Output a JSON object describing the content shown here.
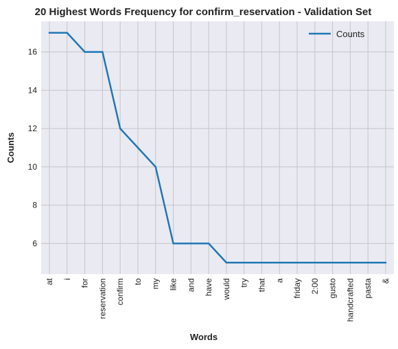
{
  "chart_data": {
    "type": "line",
    "title": "20 Highest Words Frequency for confirm_reservation - Validation Set",
    "xlabel": "Words",
    "ylabel": "Counts",
    "categories": [
      "at",
      "i",
      "for",
      "reservation",
      "confirm",
      "to",
      "my",
      "like",
      "and",
      "have",
      "would",
      "try",
      "that",
      "a",
      "friday",
      "2:00",
      "gusto",
      "handcrafted",
      "pasta",
      "&"
    ],
    "series": [
      {
        "name": "Counts",
        "values": [
          17,
          17,
          16,
          16,
          12,
          11,
          10,
          6,
          6,
          6,
          5,
          5,
          5,
          5,
          5,
          5,
          5,
          5,
          5,
          5
        ]
      }
    ],
    "yticks": [
      6,
      8,
      10,
      12,
      14,
      16
    ],
    "ylim": [
      4.4,
      17.6
    ],
    "grid": true,
    "legend_position": "top-right",
    "colors": {
      "line": "#1f77b4",
      "plot_background": "#eaeaf2",
      "grid": "#c4c4c8"
    }
  }
}
